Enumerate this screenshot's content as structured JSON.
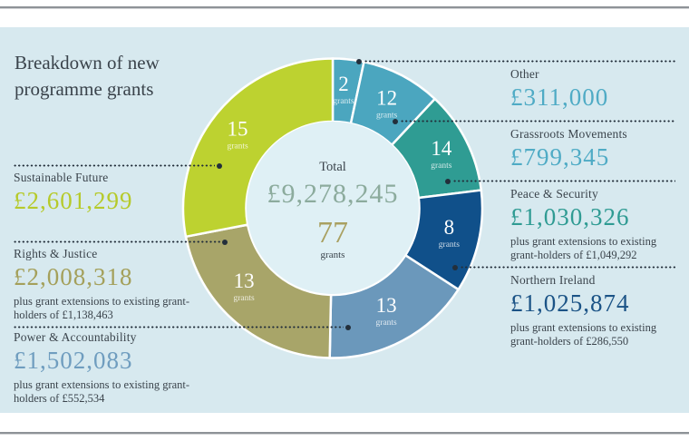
{
  "page": {
    "title_line1": "Breakdown of new",
    "title_line2": "programme grants"
  },
  "center": {
    "total_label": "Total",
    "total_amount_text": "£9,278,245",
    "total_grants": "77",
    "grants_word": "grants"
  },
  "chart_data": {
    "type": "pie",
    "variant": "donut",
    "title": "Breakdown of new programme grants",
    "currency": "GBP",
    "total_amount": 9278245,
    "total_amount_text": "£9,278,245",
    "total_grants": 77,
    "grants_word": "grants",
    "legend_position": "callouts-left-and-right",
    "angles_proportional_to": "amount",
    "colors": {
      "panel_background": "#d7e9ef",
      "hole_background": "#dff0f5",
      "dark_text": "#3b444c",
      "total_amount_text": "#8cab9d",
      "total_grants_text": "#a9a061",
      "leader_dots": "#232f3b"
    },
    "segments": [
      {
        "name": "Other",
        "grants": 2,
        "amount": 311000,
        "amount_text": "£311,000",
        "note": "",
        "color": "#4ba6bf",
        "text_color": "#4fabc5",
        "side": "right",
        "label_angle": 5,
        "label_r": 138
      },
      {
        "name": "Grassroots Movements",
        "grants": 12,
        "amount": 799345,
        "amount_text": "£799,345",
        "note": "",
        "color": "#4ba6bf",
        "text_color": "#4fabc5",
        "side": "right",
        "label_angle": 26,
        "label_r": 136
      },
      {
        "name": "Peace & Security",
        "grants": 14,
        "amount": 1030326,
        "amount_text": "£1,030,326",
        "note": "plus grant extensions to existing grant-holders of £1,049,292",
        "color": "#2f9c93",
        "text_color": "#2f9b93",
        "side": "right",
        "label_angle": 61,
        "label_r": 137
      },
      {
        "name": "Northern Ireland",
        "grants": 8,
        "amount": 1025874,
        "amount_text": "£1,025,874",
        "note": "plus grant extensions to existing grant-holders of £286,550",
        "color": "#10508a",
        "text_color": "#1b5386",
        "side": "right",
        "label_angle": 99,
        "label_r": 130
      },
      {
        "name": "Power & Accountability",
        "grants": 13,
        "amount": 1502083,
        "amount_text": "£1,502,083",
        "note": "plus grant extensions to existing grant-holders of £552,534",
        "color": "#6b98bb",
        "text_color": "#6f9dbf",
        "side": "left",
        "label_angle": 151,
        "label_r": 122
      },
      {
        "name": "Rights & Justice",
        "grants": 13,
        "amount": 2008318,
        "amount_text": "£2,008,318",
        "note": "plus grant extensions to existing grant-holders of £1,138,463",
        "color": "#a8a569",
        "text_color": "#a4a05b",
        "side": "left",
        "label_angle": 231,
        "label_r": 126
      },
      {
        "name": "Sustainable Future",
        "grants": 15,
        "amount": 2601299,
        "amount_text": "£2,601,299",
        "note": "",
        "color": "#bdd230",
        "text_color": "#b6ca2b",
        "side": "left",
        "label_angle": 310,
        "label_r": 137
      }
    ]
  }
}
